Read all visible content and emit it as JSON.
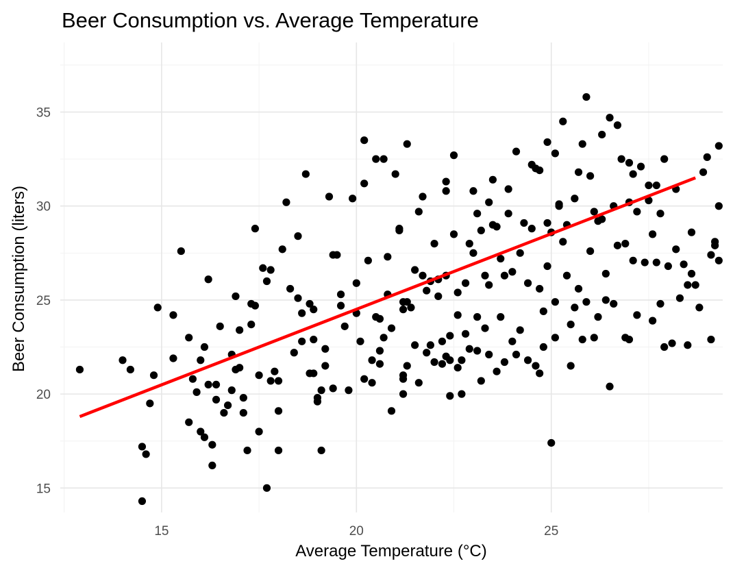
{
  "chart_data": {
    "type": "scatter",
    "title": "Beer Consumption vs. Average Temperature",
    "xlabel": "Average Temperature (°C)",
    "ylabel": "Beer Consumption (liters)",
    "xlim": [
      12.4,
      29.4
    ],
    "ylim": [
      13.7,
      38.7
    ],
    "x_ticks": [
      15,
      20,
      25
    ],
    "y_ticks": [
      15,
      20,
      25,
      30,
      35
    ],
    "x_tick_labels": [
      "15",
      "20",
      "25"
    ],
    "y_tick_labels": [
      "15",
      "20",
      "25",
      "30",
      "35"
    ],
    "grid": true,
    "point_color": "#000000",
    "fit_color": "#ff0000",
    "fit_line": {
      "x": [
        12.9,
        28.7
      ],
      "y": [
        18.8,
        31.5
      ]
    },
    "points": [
      [
        12.9,
        21.3
      ],
      [
        14.0,
        21.8
      ],
      [
        14.2,
        21.3
      ],
      [
        14.5,
        17.2
      ],
      [
        14.5,
        14.3
      ],
      [
        14.6,
        16.8
      ],
      [
        14.7,
        19.5
      ],
      [
        14.8,
        21.0
      ],
      [
        14.9,
        24.6
      ],
      [
        15.3,
        21.9
      ],
      [
        15.3,
        24.2
      ],
      [
        15.5,
        27.6
      ],
      [
        15.7,
        18.5
      ],
      [
        15.7,
        23.0
      ],
      [
        15.8,
        20.8
      ],
      [
        15.9,
        20.1
      ],
      [
        16.0,
        18.0
      ],
      [
        16.0,
        21.8
      ],
      [
        16.1,
        17.7
      ],
      [
        16.1,
        22.5
      ],
      [
        16.2,
        20.5
      ],
      [
        16.2,
        26.1
      ],
      [
        16.3,
        17.3
      ],
      [
        16.3,
        16.2
      ],
      [
        16.4,
        19.7
      ],
      [
        16.4,
        20.5
      ],
      [
        16.5,
        23.6
      ],
      [
        16.6,
        19.0
      ],
      [
        16.7,
        19.4
      ],
      [
        16.8,
        20.2
      ],
      [
        16.8,
        22.1
      ],
      [
        16.9,
        25.2
      ],
      [
        16.9,
        21.3
      ],
      [
        17.0,
        23.4
      ],
      [
        17.0,
        21.4
      ],
      [
        17.1,
        19.8
      ],
      [
        17.1,
        19.0
      ],
      [
        17.2,
        17.0
      ],
      [
        17.3,
        23.7
      ],
      [
        17.3,
        24.8
      ],
      [
        17.4,
        28.8
      ],
      [
        17.4,
        24.7
      ],
      [
        17.5,
        18.0
      ],
      [
        17.5,
        21.0
      ],
      [
        17.6,
        26.7
      ],
      [
        17.7,
        26.0
      ],
      [
        17.7,
        15.0
      ],
      [
        17.8,
        20.7
      ],
      [
        17.8,
        26.6
      ],
      [
        17.9,
        21.2
      ],
      [
        18.0,
        20.7
      ],
      [
        18.0,
        19.1
      ],
      [
        18.0,
        17.0
      ],
      [
        18.1,
        27.7
      ],
      [
        18.2,
        30.2
      ],
      [
        18.3,
        25.6
      ],
      [
        18.4,
        22.2
      ],
      [
        18.5,
        28.4
      ],
      [
        18.5,
        25.1
      ],
      [
        18.6,
        24.3
      ],
      [
        18.6,
        22.8
      ],
      [
        18.7,
        31.7
      ],
      [
        18.8,
        21.1
      ],
      [
        18.8,
        24.8
      ],
      [
        18.9,
        24.5
      ],
      [
        18.9,
        21.1
      ],
      [
        18.9,
        22.9
      ],
      [
        19.0,
        19.8
      ],
      [
        19.0,
        19.6
      ],
      [
        19.1,
        20.2
      ],
      [
        19.1,
        17.0
      ],
      [
        19.2,
        22.4
      ],
      [
        19.2,
        21.5
      ],
      [
        19.3,
        30.5
      ],
      [
        19.4,
        27.4
      ],
      [
        19.4,
        20.3
      ],
      [
        19.5,
        27.4
      ],
      [
        19.6,
        25.3
      ],
      [
        19.6,
        24.7
      ],
      [
        19.7,
        23.6
      ],
      [
        19.8,
        20.2
      ],
      [
        19.9,
        30.4
      ],
      [
        20.0,
        25.9
      ],
      [
        20.0,
        24.3
      ],
      [
        20.1,
        22.8
      ],
      [
        20.2,
        20.8
      ],
      [
        20.2,
        33.5
      ],
      [
        20.2,
        31.2
      ],
      [
        20.3,
        27.1
      ],
      [
        20.4,
        21.8
      ],
      [
        20.4,
        20.6
      ],
      [
        20.5,
        32.5
      ],
      [
        20.5,
        24.1
      ],
      [
        20.6,
        22.3
      ],
      [
        20.6,
        24.0
      ],
      [
        20.6,
        21.6
      ],
      [
        20.7,
        23.0
      ],
      [
        20.7,
        32.5
      ],
      [
        20.8,
        27.3
      ],
      [
        20.8,
        25.3
      ],
      [
        20.9,
        23.5
      ],
      [
        20.9,
        19.1
      ],
      [
        21.0,
        31.7
      ],
      [
        21.1,
        28.7
      ],
      [
        21.1,
        28.8
      ],
      [
        21.2,
        24.9
      ],
      [
        21.2,
        24.5
      ],
      [
        21.2,
        21.0
      ],
      [
        21.2,
        20.8
      ],
      [
        21.2,
        20.0
      ],
      [
        21.3,
        33.3
      ],
      [
        21.3,
        21.5
      ],
      [
        21.3,
        24.9
      ],
      [
        21.4,
        24.6
      ],
      [
        21.5,
        22.6
      ],
      [
        21.5,
        26.6
      ],
      [
        21.6,
        20.6
      ],
      [
        21.6,
        29.7
      ],
      [
        21.7,
        30.5
      ],
      [
        21.7,
        26.3
      ],
      [
        21.8,
        25.5
      ],
      [
        21.8,
        22.2
      ],
      [
        21.9,
        22.6
      ],
      [
        21.9,
        26.0
      ],
      [
        22.0,
        21.7
      ],
      [
        22.0,
        28.0
      ],
      [
        22.1,
        25.2
      ],
      [
        22.1,
        26.1
      ],
      [
        22.2,
        21.6
      ],
      [
        22.2,
        22.8
      ],
      [
        22.3,
        31.3
      ],
      [
        22.3,
        30.8
      ],
      [
        22.3,
        22.0
      ],
      [
        22.3,
        26.3
      ],
      [
        22.4,
        23.1
      ],
      [
        22.4,
        21.8
      ],
      [
        22.4,
        19.9
      ],
      [
        22.5,
        32.7
      ],
      [
        22.5,
        28.5
      ],
      [
        22.6,
        25.4
      ],
      [
        22.6,
        24.2
      ],
      [
        22.6,
        21.4
      ],
      [
        22.7,
        21.8
      ],
      [
        22.7,
        20.0
      ],
      [
        22.8,
        25.9
      ],
      [
        22.8,
        23.2
      ],
      [
        22.9,
        22.4
      ],
      [
        22.9,
        28.0
      ],
      [
        23.0,
        30.8
      ],
      [
        23.0,
        27.5
      ],
      [
        23.1,
        29.6
      ],
      [
        23.1,
        24.1
      ],
      [
        23.1,
        22.3
      ],
      [
        23.2,
        28.7
      ],
      [
        23.2,
        20.7
      ],
      [
        23.3,
        26.3
      ],
      [
        23.3,
        23.5
      ],
      [
        23.4,
        30.2
      ],
      [
        23.4,
        25.8
      ],
      [
        23.4,
        22.1
      ],
      [
        23.5,
        31.4
      ],
      [
        23.5,
        29.0
      ],
      [
        23.6,
        28.9
      ],
      [
        23.6,
        21.2
      ],
      [
        23.7,
        27.2
      ],
      [
        23.7,
        24.1
      ],
      [
        23.8,
        26.3
      ],
      [
        23.8,
        21.7
      ],
      [
        23.9,
        30.9
      ],
      [
        23.9,
        29.6
      ],
      [
        24.0,
        22.8
      ],
      [
        24.0,
        26.5
      ],
      [
        24.1,
        32.9
      ],
      [
        24.1,
        22.1
      ],
      [
        24.2,
        23.4
      ],
      [
        24.2,
        27.5
      ],
      [
        24.3,
        29.1
      ],
      [
        24.4,
        21.8
      ],
      [
        24.4,
        25.9
      ],
      [
        24.5,
        28.8
      ],
      [
        24.5,
        32.2
      ],
      [
        24.6,
        32.0
      ],
      [
        24.6,
        21.5
      ],
      [
        24.7,
        21.1
      ],
      [
        24.7,
        31.9
      ],
      [
        24.7,
        25.6
      ],
      [
        24.8,
        24.4
      ],
      [
        24.8,
        22.5
      ],
      [
        24.9,
        29.1
      ],
      [
        24.9,
        33.4
      ],
      [
        24.9,
        26.8
      ],
      [
        25.0,
        17.4
      ],
      [
        25.0,
        28.6
      ],
      [
        25.1,
        32.8
      ],
      [
        25.1,
        24.9
      ],
      [
        25.1,
        23.0
      ],
      [
        25.2,
        30.0
      ],
      [
        25.2,
        30.1
      ],
      [
        25.3,
        34.5
      ],
      [
        25.3,
        28.1
      ],
      [
        25.4,
        29.0
      ],
      [
        25.4,
        26.3
      ],
      [
        25.5,
        23.7
      ],
      [
        25.5,
        21.5
      ],
      [
        25.6,
        24.6
      ],
      [
        25.6,
        30.4
      ],
      [
        25.7,
        31.8
      ],
      [
        25.7,
        25.6
      ],
      [
        25.8,
        33.3
      ],
      [
        25.8,
        22.9
      ],
      [
        25.9,
        35.8
      ],
      [
        25.9,
        24.9
      ],
      [
        26.0,
        31.6
      ],
      [
        26.0,
        27.6
      ],
      [
        26.1,
        29.7
      ],
      [
        26.1,
        23.0
      ],
      [
        26.2,
        29.2
      ],
      [
        26.2,
        24.1
      ],
      [
        26.3,
        29.3
      ],
      [
        26.3,
        33.8
      ],
      [
        26.4,
        25.0
      ],
      [
        26.4,
        26.4
      ],
      [
        26.5,
        34.7
      ],
      [
        26.5,
        20.4
      ],
      [
        26.6,
        24.8
      ],
      [
        26.6,
        30.0
      ],
      [
        26.7,
        34.3
      ],
      [
        26.7,
        27.9
      ],
      [
        26.8,
        32.5
      ],
      [
        26.9,
        28.0
      ],
      [
        26.9,
        23.0
      ],
      [
        27.0,
        30.2
      ],
      [
        27.0,
        32.3
      ],
      [
        27.0,
        22.9
      ],
      [
        27.1,
        31.7
      ],
      [
        27.1,
        27.1
      ],
      [
        27.2,
        29.7
      ],
      [
        27.2,
        24.2
      ],
      [
        27.3,
        32.1
      ],
      [
        27.4,
        27.0
      ],
      [
        27.5,
        30.3
      ],
      [
        27.5,
        31.1
      ],
      [
        27.6,
        28.5
      ],
      [
        27.6,
        23.9
      ],
      [
        27.7,
        27.0
      ],
      [
        27.7,
        31.1
      ],
      [
        27.8,
        29.6
      ],
      [
        27.8,
        24.8
      ],
      [
        27.9,
        32.5
      ],
      [
        27.9,
        22.5
      ],
      [
        28.0,
        26.8
      ],
      [
        28.1,
        22.7
      ],
      [
        28.2,
        30.9
      ],
      [
        28.2,
        27.7
      ],
      [
        28.3,
        25.1
      ],
      [
        28.4,
        26.9
      ],
      [
        28.5,
        25.8
      ],
      [
        28.5,
        22.6
      ],
      [
        28.6,
        28.6
      ],
      [
        28.6,
        26.4
      ],
      [
        28.7,
        25.8
      ],
      [
        28.8,
        24.6
      ],
      [
        28.9,
        31.8
      ],
      [
        29.0,
        32.6
      ],
      [
        29.1,
        22.9
      ],
      [
        29.1,
        27.4
      ],
      [
        29.2,
        28.1
      ],
      [
        29.2,
        27.9
      ],
      [
        29.3,
        27.1
      ],
      [
        29.3,
        30.0
      ],
      [
        29.3,
        33.2
      ]
    ]
  }
}
